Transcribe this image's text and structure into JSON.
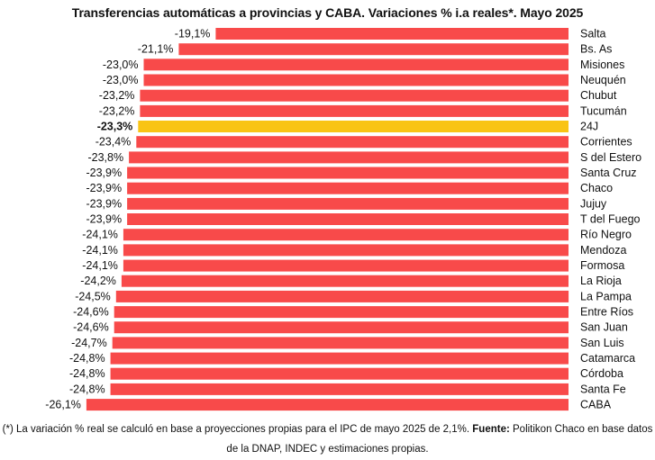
{
  "title": "Transferencias automáticas a provincias y CABA. Variaciones % i.a reales*. Mayo 2025",
  "footnote": {
    "line1_prefix": "(*) La variación % real se calculó en base a proyecciones propias para el IPC de mayo 2025 de 2,1%. ",
    "source_label": "Fuente:",
    "line1_suffix": " Politikon Chaco en base datos",
    "line2": "de la DNAP, INDEC y estimaciones propias."
  },
  "colors": {
    "bar": "#f84a4a",
    "highlight": "#f9c414"
  },
  "chart_data": {
    "type": "bar",
    "orientation": "horizontal",
    "categories": [
      "Salta",
      "Bs. As",
      "Misiones",
      "Neuquén",
      "Chubut",
      "Tucumán",
      "24J",
      "Corrientes",
      "S del Estero",
      "Santa Cruz",
      "Chaco",
      "Jujuy",
      "T del Fuego",
      "Río Negro",
      "Mendoza",
      "Formosa",
      "La Rioja",
      "La Pampa",
      "Entre Ríos",
      "San Juan",
      "San Luis",
      "Catamarca",
      "Córdoba",
      "Santa Fe",
      "CABA"
    ],
    "values": [
      -19.1,
      -21.1,
      -23.0,
      -23.0,
      -23.2,
      -23.2,
      -23.3,
      -23.4,
      -23.8,
      -23.9,
      -23.9,
      -23.9,
      -23.9,
      -24.1,
      -24.1,
      -24.1,
      -24.2,
      -24.5,
      -24.6,
      -24.6,
      -24.7,
      -24.8,
      -24.8,
      -24.8,
      -26.1
    ],
    "labels": [
      "-19,1%",
      "-21,1%",
      "-23,0%",
      "-23,0%",
      "-23,2%",
      "-23,2%",
      "-23,3%",
      "-23,4%",
      "-23,8%",
      "-23,9%",
      "-23,9%",
      "-23,9%",
      "-23,9%",
      "-24,1%",
      "-24,1%",
      "-24,1%",
      "-24,2%",
      "-24,5%",
      "-24,6%",
      "-24,6%",
      "-24,7%",
      "-24,8%",
      "-24,8%",
      "-24,8%",
      "-26,1%"
    ],
    "highlight_category": "24J",
    "xlim": [
      -26.1,
      0
    ],
    "grid": false,
    "axes_visible": false,
    "legend": "none"
  }
}
